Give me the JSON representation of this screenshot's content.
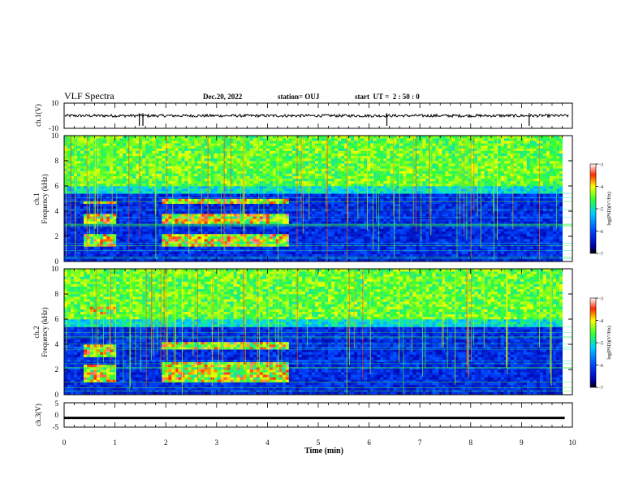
{
  "header": {
    "title": "VLF Spectra",
    "date": "Dec.20, 2022",
    "station": "station= OUJ",
    "start_ut": "start  UT =  2 : 50 : 0"
  },
  "chart_data": [
    {
      "type": "line",
      "panel": "ch1-waveform",
      "ylabel": "ch.1(V)",
      "ylim": [
        -10,
        10
      ],
      "ytick_labels": [
        "10",
        "-10"
      ],
      "xlim": [
        0,
        10
      ],
      "description_note": "continuous waveform trace near 0 V with occasional negative spikes",
      "spikes_x": [
        1.48,
        1.55,
        6.35,
        9.15
      ]
    },
    {
      "type": "heatmap",
      "panel": "ch1-spectrogram",
      "ylabel_line1": "ch.1",
      "ylabel_line2": "Frequency (kHz)",
      "ylim": [
        0,
        10
      ],
      "ytick_labels": [
        "0",
        "2",
        "4",
        "6",
        "8",
        "10"
      ],
      "xlim": [
        0,
        10
      ],
      "colorbar": {
        "label": "log(PSD)(V²/Hz)",
        "range": [
          -7,
          -3
        ],
        "tick_labels": [
          "-3",
          "-4",
          "-5",
          "-6",
          "-7"
        ]
      },
      "bright_band_khz": [
        6,
        10
      ],
      "emission_blocks": [
        {
          "x": [
            0.4,
            1.0
          ],
          "f_khz": [
            1.2,
            2.2
          ]
        },
        {
          "x": [
            0.4,
            1.0
          ],
          "f_khz": [
            3.0,
            3.8
          ]
        },
        {
          "x": [
            0.4,
            1.0
          ],
          "f_khz": [
            4.6,
            4.8
          ]
        },
        {
          "x": [
            1.9,
            4.4
          ],
          "f_khz": [
            1.2,
            2.2
          ]
        },
        {
          "x": [
            1.9,
            4.4
          ],
          "f_khz": [
            3.0,
            3.8
          ]
        },
        {
          "x": [
            1.9,
            4.4
          ],
          "f_khz": [
            4.6,
            4.9
          ]
        }
      ]
    },
    {
      "type": "heatmap",
      "panel": "ch2-spectrogram",
      "ylabel_line1": "ch.2",
      "ylabel_line2": "Frequency (kHz)",
      "ylim": [
        0,
        10
      ],
      "ytick_labels": [
        "0",
        "2",
        "4",
        "6",
        "8",
        "10"
      ],
      "xlim": [
        0,
        10
      ],
      "colorbar": {
        "label": "log(PSD)(V²/Hz)",
        "range": [
          -7,
          -3
        ],
        "tick_labels": [
          "-3",
          "-4",
          "-5",
          "-6",
          "-7"
        ]
      },
      "bright_band_khz": [
        6,
        10
      ],
      "emission_blocks": [
        {
          "x": [
            0.4,
            1.0
          ],
          "f_khz": [
            1.0,
            2.4
          ]
        },
        {
          "x": [
            0.4,
            1.0
          ],
          "f_khz": [
            3.0,
            4.0
          ]
        },
        {
          "x": [
            0.4,
            1.0
          ],
          "f_khz": [
            6.5,
            7.0
          ]
        },
        {
          "x": [
            1.9,
            4.4
          ],
          "f_khz": [
            1.0,
            2.6
          ]
        },
        {
          "x": [
            1.9,
            4.4
          ],
          "f_khz": [
            3.6,
            4.2
          ]
        }
      ]
    },
    {
      "type": "line",
      "panel": "ch3-waveform",
      "ylabel": "ch.3(V)",
      "ylim": [
        -5,
        5
      ],
      "ytick_labels": [
        "5",
        "0",
        "-5"
      ],
      "xlim": [
        0,
        10
      ],
      "level": -1.2
    }
  ],
  "xaxis": {
    "label": "Time (min)",
    "ticks": [
      0,
      1,
      2,
      3,
      4,
      5,
      6,
      7,
      8,
      9,
      10
    ],
    "tick_labels": [
      "0",
      "1",
      "2",
      "3",
      "4",
      "5",
      "6",
      "7",
      "8",
      "9",
      "10"
    ]
  }
}
